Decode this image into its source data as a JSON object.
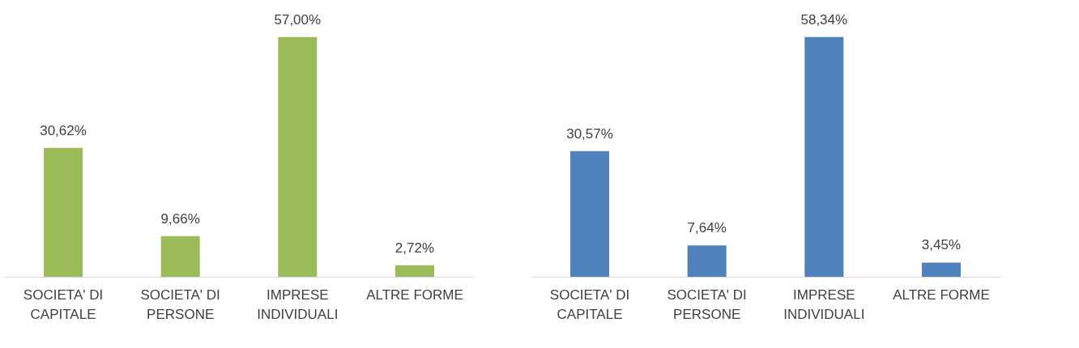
{
  "chart_data": [
    {
      "type": "bar",
      "categories": [
        "SOCIETA' DI CAPITALE",
        "SOCIETA' DI PERSONE",
        "IMPRESE INDIVIDUALI",
        "ALTRE FORME"
      ],
      "values": [
        30.62,
        9.66,
        57.0,
        2.72
      ],
      "value_labels": [
        "30,62%",
        "9,66%",
        "57,00%",
        "2,72%"
      ],
      "color": "#9bbb59",
      "grid": false
    },
    {
      "type": "bar",
      "categories": [
        "SOCIETA' DI CAPITALE",
        "SOCIETA' DI PERSONE",
        "IMPRESE INDIVIDUALI",
        "ALTRE FORME"
      ],
      "values": [
        30.57,
        7.64,
        58.34,
        3.45
      ],
      "value_labels": [
        "30,57%",
        "7,64%",
        "58,34%",
        "3,45%"
      ],
      "color": "#4f81bd",
      "grid": false
    }
  ]
}
